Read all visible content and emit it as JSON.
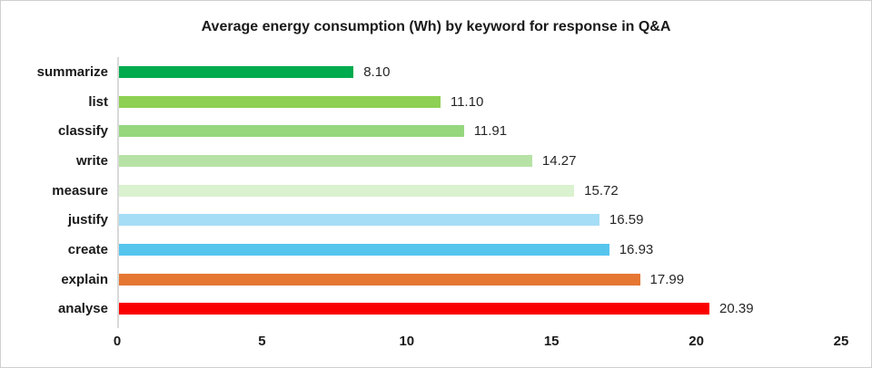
{
  "chart_data": {
    "type": "bar",
    "orientation": "horizontal",
    "title": "Average energy consumption (Wh) by keyword for response in Q&A",
    "categories": [
      "summarize",
      "list",
      "classify",
      "write",
      "measure",
      "justify",
      "create",
      "explain",
      "analyse"
    ],
    "values": [
      8.1,
      11.1,
      11.91,
      14.27,
      15.72,
      16.59,
      16.93,
      17.99,
      20.39
    ],
    "value_labels": [
      "8.10",
      "11.10",
      "11.91",
      "14.27",
      "15.72",
      "16.59",
      "16.93",
      "17.99",
      "20.39"
    ],
    "bar_colors": [
      "#00AB4E",
      "#8ED053",
      "#96D77E",
      "#B6E3A5",
      "#DBF2D0",
      "#A5DDF6",
      "#56C5EE",
      "#E57733",
      "#FB0000"
    ],
    "xlabel": "",
    "ylabel": "",
    "xlim": [
      0,
      25
    ],
    "x_ticks": [
      "0",
      "5",
      "10",
      "15",
      "20",
      "25"
    ],
    "grid": false,
    "legend": null,
    "data_labels": true,
    "axis_line_color": "#d9d9d9",
    "text_color": "#1a1a1a"
  }
}
